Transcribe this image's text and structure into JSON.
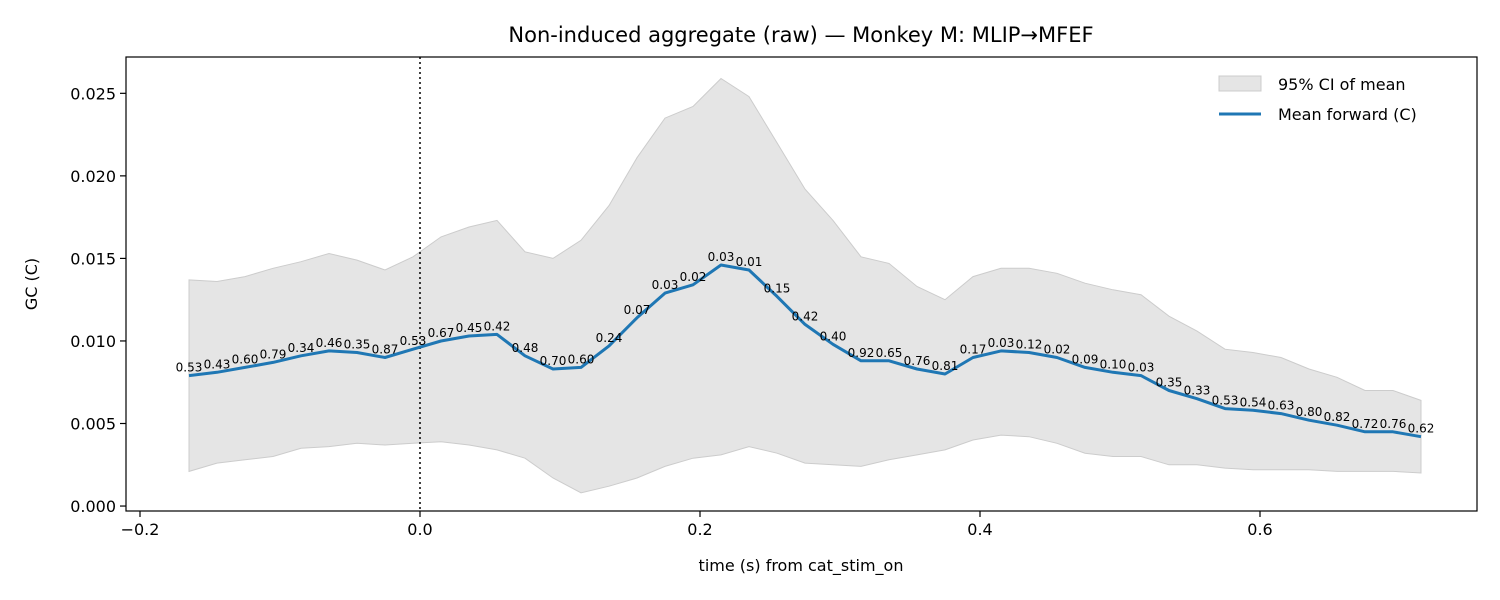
{
  "chart_data": {
    "type": "line",
    "title": "Non-induced aggregate (raw) — Monkey M: MLIP→MFEF",
    "xlabel": "time (s) from cat_stim_on",
    "ylabel": "GC (C)",
    "xlim": [
      -0.21,
      0.755
    ],
    "ylim": [
      -0.0003,
      0.0272
    ],
    "xticks": [
      -0.2,
      0.0,
      0.2,
      0.4,
      0.6
    ],
    "xtick_labels": [
      "−0.2",
      "0.0",
      "0.2",
      "0.4",
      "0.6"
    ],
    "yticks": [
      0.0,
      0.005,
      0.01,
      0.015,
      0.02,
      0.025
    ],
    "ytick_labels": [
      "0.000",
      "0.005",
      "0.010",
      "0.015",
      "0.020",
      "0.025"
    ],
    "event_line_x": 0.0,
    "legend": {
      "placement": "top-right",
      "entries": [
        "95% CI of mean",
        "Mean forward (C)"
      ]
    },
    "grid": false,
    "colors": {
      "line": "#1f77b4",
      "band": "#e5e5e5",
      "band_edge": "#cccccc"
    },
    "x": [
      -0.165,
      -0.145,
      -0.125,
      -0.105,
      -0.085,
      -0.065,
      -0.045,
      -0.025,
      -0.005,
      0.015,
      0.035,
      0.055,
      0.075,
      0.095,
      0.115,
      0.135,
      0.155,
      0.175,
      0.195,
      0.215,
      0.235,
      0.255,
      0.275,
      0.295,
      0.315,
      0.335,
      0.355,
      0.375,
      0.395,
      0.415,
      0.435,
      0.455,
      0.475,
      0.495,
      0.515,
      0.535,
      0.555,
      0.575,
      0.595,
      0.615,
      0.635,
      0.655,
      0.675,
      0.695,
      0.715
    ],
    "series": [
      {
        "name": "Mean forward (C)",
        "values": [
          0.0079,
          0.0081,
          0.0084,
          0.0087,
          0.0091,
          0.0094,
          0.0093,
          0.009,
          0.0095,
          0.01,
          0.0103,
          0.0104,
          0.0091,
          0.0083,
          0.0084,
          0.0097,
          0.0114,
          0.0129,
          0.0134,
          0.0146,
          0.0143,
          0.0127,
          0.011,
          0.0098,
          0.0088,
          0.0088,
          0.0083,
          0.008,
          0.009,
          0.0094,
          0.0093,
          0.009,
          0.0084,
          0.0081,
          0.0079,
          0.007,
          0.0065,
          0.0059,
          0.0058,
          0.0056,
          0.0052,
          0.0049,
          0.0045,
          0.0045,
          0.0042
        ]
      }
    ],
    "ci_upper": [
      0.0137,
      0.0136,
      0.0139,
      0.0144,
      0.0148,
      0.0153,
      0.0149,
      0.0143,
      0.0151,
      0.0163,
      0.0169,
      0.0173,
      0.0154,
      0.015,
      0.0161,
      0.0182,
      0.0211,
      0.0235,
      0.0242,
      0.0259,
      0.0248,
      0.022,
      0.0192,
      0.0173,
      0.0151,
      0.0147,
      0.0133,
      0.0125,
      0.0139,
      0.0144,
      0.0144,
      0.0141,
      0.0135,
      0.0131,
      0.0128,
      0.0115,
      0.0106,
      0.0095,
      0.0093,
      0.009,
      0.0083,
      0.0078,
      0.007,
      0.007,
      0.0064
    ],
    "ci_lower": [
      0.0021,
      0.0026,
      0.0028,
      0.003,
      0.0035,
      0.0036,
      0.0038,
      0.0037,
      0.0038,
      0.0039,
      0.0037,
      0.0034,
      0.0029,
      0.0017,
      0.0008,
      0.0012,
      0.0017,
      0.0024,
      0.0029,
      0.0031,
      0.0036,
      0.0032,
      0.0026,
      0.0025,
      0.0024,
      0.0028,
      0.0031,
      0.0034,
      0.004,
      0.0043,
      0.0042,
      0.0038,
      0.0032,
      0.003,
      0.003,
      0.0025,
      0.0025,
      0.0023,
      0.0022,
      0.0022,
      0.0022,
      0.0021,
      0.0021,
      0.0021,
      0.002
    ],
    "point_labels": [
      "0.53",
      "0.43",
      "0.60",
      "0.79",
      "0.34",
      "0.46",
      "0.35",
      "0.87",
      "0.53",
      "0.67",
      "0.45",
      "0.42",
      "0.48",
      "0.70",
      "0.60",
      "0.24",
      "0.07",
      "0.03",
      "0.02",
      "0.03",
      "0.01",
      "0.15",
      "0.42",
      "0.40",
      "0.92",
      "0.65",
      "0.76",
      "0.81",
      "0.17",
      "0.03",
      "0.12",
      "0.02",
      "0.09",
      "0.10",
      "0.03",
      "0.35",
      "0.33",
      "0.53",
      "0.54",
      "0.63",
      "0.80",
      "0.82",
      "0.72",
      "0.76",
      "0.62"
    ]
  }
}
